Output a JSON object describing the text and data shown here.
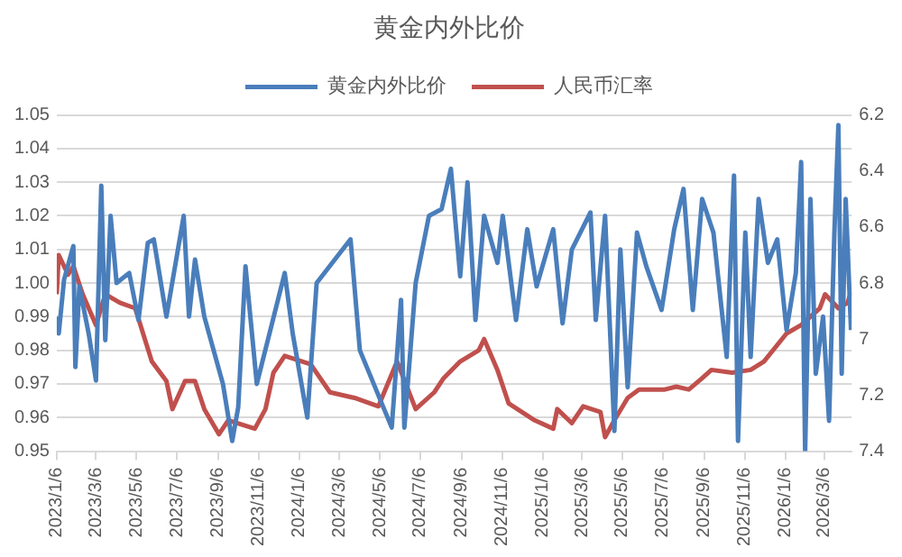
{
  "chart_data": {
    "type": "line",
    "title": "黄金内外比价",
    "legend": "top",
    "grid": "y",
    "marker": "none",
    "line_style": "solid",
    "xlim": [
      "2023-01-06",
      "2026-04-16"
    ],
    "xticks": [
      {
        "value": "2023-01-06",
        "label": "2023/1/6"
      },
      {
        "value": "2023-03-06",
        "label": "2023/3/6"
      },
      {
        "value": "2023-05-06",
        "label": "2023/5/6"
      },
      {
        "value": "2023-07-06",
        "label": "2023/7/6"
      },
      {
        "value": "2023-09-06",
        "label": "2023/9/6"
      },
      {
        "value": "2023-11-06",
        "label": "2023/11/6"
      },
      {
        "value": "2024-01-06",
        "label": "2024/1/6"
      },
      {
        "value": "2024-03-06",
        "label": "2024/3/6"
      },
      {
        "value": "2024-05-06",
        "label": "2024/5/6"
      },
      {
        "value": "2024-07-06",
        "label": "2024/7/6"
      },
      {
        "value": "2024-09-06",
        "label": "2024/9/6"
      },
      {
        "value": "2024-11-06",
        "label": "2024/11/6"
      },
      {
        "value": "2025-01-06",
        "label": "2025/1/6"
      },
      {
        "value": "2025-03-06",
        "label": "2025/3/6"
      },
      {
        "value": "2025-05-06",
        "label": "2025/5/6"
      },
      {
        "value": "2025-07-06",
        "label": "2025/7/6"
      },
      {
        "value": "2025-09-06",
        "label": "2025/9/6"
      },
      {
        "value": "2025-11-06",
        "label": "2025/11/6"
      },
      {
        "value": "2026-01-06",
        "label": "2026/1/6"
      },
      {
        "value": "2026-03-06",
        "label": "2026/3/6"
      }
    ],
    "ylim": [
      0.95,
      1.05
    ],
    "yticks": [
      0.95,
      0.96,
      0.97,
      0.98,
      0.99,
      {
        "value": 1,
        "label": "1.00"
      },
      1.01,
      1.02,
      1.03,
      1.04,
      1.05
    ],
    "y2lim": [
      7.4,
      6.2
    ],
    "y2ticks": [
      7.4,
      7.2,
      7,
      6.8,
      6.6,
      6.4,
      6.2
    ],
    "series": [
      {
        "name": "黄金内外比价",
        "color": "#4a7ebb",
        "x": [
          "2023-01-06",
          "2023-01-09",
          "2023-01-17",
          "2023-01-31",
          "2023-02-03",
          "2023-02-09",
          "2023-02-23",
          "2023-03-06",
          "2023-03-14",
          "2023-03-20",
          "2023-03-28",
          "2023-04-06",
          "2023-04-25",
          "2023-05-09",
          "2023-05-23",
          "2023-06-01",
          "2023-06-20",
          "2023-07-16",
          "2023-07-24",
          "2023-08-02",
          "2023-08-16",
          "2023-09-13",
          "2023-09-27",
          "2023-10-06",
          "2023-10-17",
          "2023-11-03",
          "2023-12-15",
          "2023-12-27",
          "2024-01-18",
          "2024-02-01",
          "2024-03-23",
          "2024-04-06",
          "2024-05-24",
          "2024-06-07",
          "2024-06-12",
          "2024-06-29",
          "2024-07-19",
          "2024-08-07",
          "2024-08-21",
          "2024-09-04",
          "2024-09-15",
          "2024-09-27",
          "2024-10-10",
          "2024-10-30",
          "2024-11-07",
          "2024-11-27",
          "2024-12-14",
          "2024-12-28",
          "2025-01-22",
          "2025-02-05",
          "2025-02-19",
          "2025-03-19",
          "2025-03-27",
          "2025-04-10",
          "2025-04-24",
          "2025-05-03",
          "2025-05-14",
          "2025-05-28",
          "2025-06-11",
          "2025-07-04",
          "2025-07-23",
          "2025-08-06",
          "2025-08-20",
          "2025-09-03",
          "2025-09-20",
          "2025-10-10",
          "2025-10-21",
          "2025-10-27",
          "2025-11-07",
          "2025-11-15",
          "2025-11-27",
          "2025-12-11",
          "2025-12-25",
          "2026-01-08",
          "2026-01-22",
          "2026-01-30",
          "2026-02-05",
          "2026-02-13",
          "2026-02-21",
          "2026-03-04",
          "2026-03-13",
          "2026-03-21",
          "2026-03-27",
          "2026-04-01",
          "2026-04-07",
          "2026-04-15"
        ],
        "values": [
          0.99,
          0.985,
          1.001,
          1.011,
          0.975,
          0.999,
          0.985,
          0.971,
          1.029,
          0.983,
          1.02,
          1.0,
          1.003,
          0.989,
          1.012,
          1.013,
          0.99,
          1.02,
          0.99,
          1.007,
          0.99,
          0.97,
          0.953,
          0.963,
          1.005,
          0.97,
          1.003,
          0.985,
          0.96,
          1.0,
          1.013,
          0.98,
          0.957,
          0.995,
          0.957,
          1.0,
          1.02,
          1.022,
          1.034,
          1.002,
          1.03,
          0.989,
          1.02,
          1.006,
          1.02,
          0.989,
          1.016,
          0.999,
          1.016,
          0.988,
          1.01,
          1.021,
          0.989,
          1.02,
          0.956,
          1.01,
          0.969,
          1.015,
          1.005,
          0.992,
          1.016,
          1.028,
          0.992,
          1.025,
          1.015,
          0.978,
          1.032,
          0.953,
          1.015,
          0.978,
          1.025,
          1.006,
          1.013,
          0.986,
          1.003,
          1.036,
          0.95,
          1.025,
          0.973,
          0.99,
          0.959,
          1.015,
          1.047,
          0.973,
          1.025,
          0.986
        ]
      },
      {
        "name": "人民币汇率",
        "color": "#c0504d",
        "axis": "y2",
        "x": [
          "2023-01-06",
          "2023-01-09",
          "2023-01-23",
          "2023-01-31",
          "2023-02-14",
          "2023-03-06",
          "2023-03-20",
          "2023-04-11",
          "2023-05-04",
          "2023-05-29",
          "2023-06-20",
          "2023-06-29",
          "2023-07-18",
          "2023-08-02",
          "2023-08-16",
          "2023-09-07",
          "2023-09-21",
          "2023-10-31",
          "2023-11-16",
          "2023-11-28",
          "2023-12-15",
          "2024-01-23",
          "2024-02-21",
          "2024-03-29",
          "2024-05-04",
          "2024-06-01",
          "2024-06-29",
          "2024-07-27",
          "2024-08-10",
          "2024-09-04",
          "2024-10-02",
          "2024-10-10",
          "2024-10-30",
          "2024-11-16",
          "2024-12-25",
          "2025-01-22",
          "2025-01-28",
          "2025-02-19",
          "2025-03-08",
          "2025-04-03",
          "2025-04-10",
          "2025-04-24",
          "2025-05-14",
          "2025-05-31",
          "2025-07-09",
          "2025-07-26",
          "2025-08-14",
          "2025-09-03",
          "2025-09-17",
          "2025-10-18",
          "2025-11-15",
          "2025-12-05",
          "2026-01-08",
          "2026-01-30",
          "2026-02-27",
          "2026-03-07",
          "2026-03-27",
          "2026-04-10",
          "2026-04-15"
        ],
        "values": [
          6.84,
          6.7,
          6.77,
          6.74,
          6.84,
          6.95,
          6.84,
          6.87,
          6.89,
          7.08,
          7.15,
          7.25,
          7.15,
          7.15,
          7.25,
          7.34,
          7.29,
          7.32,
          7.25,
          7.12,
          7.06,
          7.09,
          7.19,
          7.21,
          7.24,
          7.08,
          7.25,
          7.19,
          7.14,
          7.08,
          7.04,
          7.0,
          7.11,
          7.23,
          7.29,
          7.32,
          7.25,
          7.3,
          7.24,
          7.26,
          7.35,
          7.29,
          7.21,
          7.18,
          7.18,
          7.17,
          7.18,
          7.14,
          7.11,
          7.12,
          7.11,
          7.08,
          6.98,
          6.95,
          6.89,
          6.84,
          6.89,
          6.87,
          6.83
        ]
      }
    ]
  }
}
